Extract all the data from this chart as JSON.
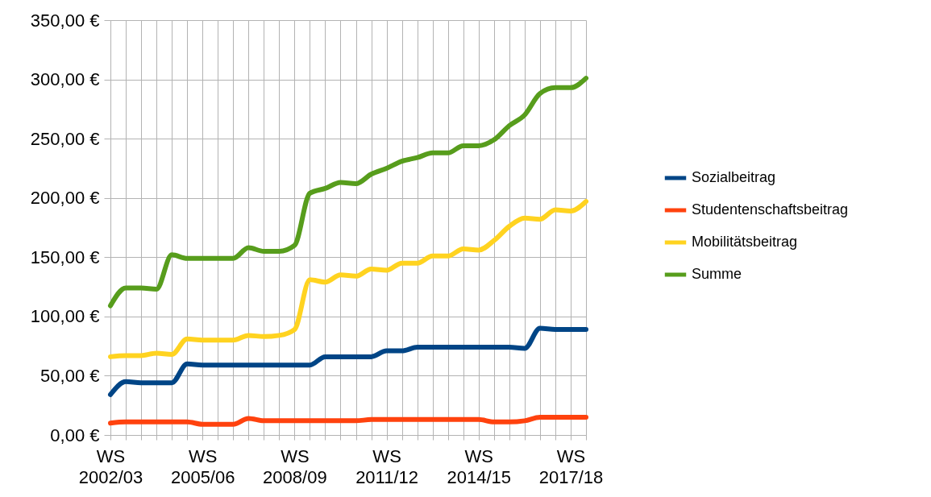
{
  "chart_data": {
    "type": "line",
    "categories": [
      "WS 2002/03",
      null,
      null,
      null,
      null,
      null,
      "WS 2005/06",
      null,
      null,
      null,
      null,
      null,
      "WS 2008/09",
      null,
      null,
      null,
      null,
      null,
      "WS 2011/12",
      null,
      null,
      null,
      null,
      null,
      "WS 2014/15",
      null,
      null,
      null,
      null,
      null,
      "WS 2017/18",
      null
    ],
    "series": [
      {
        "name": "Sozialbeitrag",
        "color": "#004586",
        "values": [
          34,
          45,
          44,
          44,
          44,
          60,
          59,
          59,
          59,
          59,
          59,
          59,
          59,
          59,
          66,
          66,
          66,
          66,
          71,
          71,
          74,
          74,
          74,
          74,
          74,
          74,
          74,
          73,
          90,
          89,
          89,
          89
        ]
      },
      {
        "name": "Studentenschaftsbeitrag",
        "color": "#ff420e",
        "values": [
          10,
          11,
          11,
          11,
          11,
          11,
          9,
          9,
          9,
          14,
          12,
          12,
          12,
          12,
          12,
          12,
          12,
          13,
          13,
          13,
          13,
          13,
          13,
          13,
          13,
          11,
          11,
          12,
          15,
          15,
          15,
          15
        ]
      },
      {
        "name": "Mobilitätsbeitrag",
        "color": "#ffd320",
        "values": [
          66,
          67,
          67,
          69,
          68,
          81,
          80,
          80,
          80,
          84,
          83,
          84,
          89,
          131,
          129,
          135,
          134,
          140,
          139,
          145,
          145,
          151,
          151,
          157,
          156,
          164,
          176,
          183,
          182,
          190,
          189,
          197
        ]
      },
      {
        "name": "Summe",
        "color": "#579d1c",
        "values": [
          109,
          124,
          124,
          123,
          152,
          149,
          149,
          149,
          149,
          158,
          155,
          155,
          160,
          204,
          208,
          213,
          212,
          220,
          225,
          231,
          234,
          238,
          238,
          244,
          244,
          249,
          261,
          270,
          288,
          293,
          293,
          301
        ]
      }
    ],
    "ylim": [
      0,
      350
    ],
    "yticks": [
      {
        "value": 0,
        "label": "0,00 €"
      },
      {
        "value": 50,
        "label": "50,00 €"
      },
      {
        "value": 100,
        "label": "100,00 €"
      },
      {
        "value": 150,
        "label": "150,00 €"
      },
      {
        "value": 200,
        "label": "200,00 €"
      },
      {
        "value": 250,
        "label": "250,00 €"
      },
      {
        "value": 300,
        "label": "300,00 €"
      },
      {
        "value": 350,
        "label": "350,00 €"
      }
    ],
    "grid": true,
    "legend": "right",
    "marker": "none",
    "line_style": "solid"
  }
}
